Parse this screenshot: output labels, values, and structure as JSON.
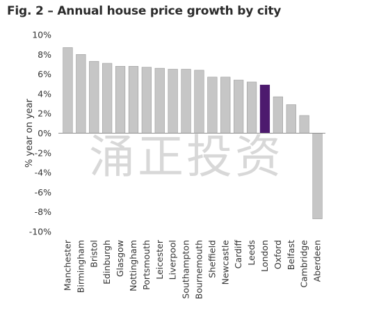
{
  "chart_data": {
    "type": "bar",
    "title": "Fig. 2 – Annual house price growth by city",
    "xlabel": "",
    "ylabel": "% year on year",
    "ylim": [
      -10,
      10
    ],
    "yticks": [
      10,
      8,
      6,
      4,
      2,
      0,
      -2,
      -4,
      -6,
      -8,
      -10
    ],
    "ytick_labels": [
      "10%",
      "8%",
      "6%",
      "4%",
      "2%",
      "0%",
      "-2%",
      "-4%",
      "-6%",
      "-8%",
      "-10%"
    ],
    "grid": false,
    "categories": [
      "Manchester",
      "Birmingham",
      "Bristol",
      "Edinburgh",
      "Glasgow",
      "Nottingham",
      "Portsmouth",
      "Leicester",
      "Liverpool",
      "Southampton",
      "Bournemouth",
      "Sheffield",
      "Newcastle",
      "Cardiff",
      "Leeds",
      "London",
      "Oxford",
      "Belfast",
      "Cambridge",
      "Aberdeen"
    ],
    "values": [
      8.7,
      8.0,
      7.3,
      7.1,
      6.8,
      6.8,
      6.7,
      6.6,
      6.5,
      6.5,
      6.4,
      5.7,
      5.7,
      5.4,
      5.2,
      4.9,
      3.7,
      2.9,
      1.8,
      -8.7
    ],
    "colors": {
      "default_bar": "#c6c6c6",
      "highlight_bar": "#4d1a6e",
      "bar_border": "#9a9a9a",
      "axis": "#8f8f8f",
      "highlight_category": "London"
    }
  },
  "watermark": "涌正投资"
}
